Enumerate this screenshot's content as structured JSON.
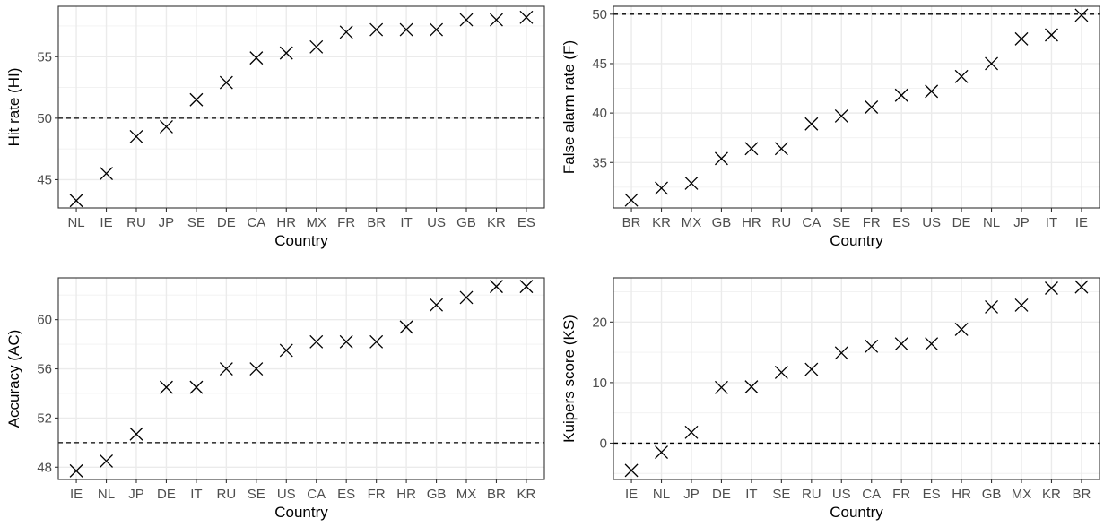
{
  "chart_data": [
    {
      "type": "scatter",
      "marker": "x",
      "title": "",
      "xlabel": "Country",
      "ylabel": "Hit rate (HI)",
      "categories": [
        "NL",
        "IE",
        "RU",
        "JP",
        "SE",
        "DE",
        "CA",
        "HR",
        "MX",
        "FR",
        "BR",
        "IT",
        "US",
        "GB",
        "KR",
        "ES"
      ],
      "values": [
        43.3,
        45.5,
        48.5,
        49.3,
        51.5,
        52.9,
        54.9,
        55.3,
        55.8,
        57.0,
        57.2,
        57.2,
        57.2,
        58.0,
        58.0,
        58.2
      ],
      "ylim": [
        42.7,
        59.1
      ],
      "yticks": [
        45,
        50,
        55
      ],
      "reference_line": 50,
      "grid": true
    },
    {
      "type": "scatter",
      "marker": "x",
      "title": "",
      "xlabel": "Country",
      "ylabel": "False alarm rate (F)",
      "categories": [
        "BR",
        "KR",
        "MX",
        "GB",
        "HR",
        "RU",
        "CA",
        "SE",
        "FR",
        "ES",
        "US",
        "DE",
        "NL",
        "JP",
        "IT",
        "IE"
      ],
      "values": [
        31.2,
        32.4,
        32.9,
        35.4,
        36.4,
        36.4,
        38.9,
        39.7,
        40.6,
        41.8,
        42.2,
        43.7,
        45.0,
        47.5,
        47.9,
        49.9
      ],
      "ylim": [
        30.4,
        50.8
      ],
      "yticks": [
        35,
        40,
        45,
        50
      ],
      "reference_line": 50,
      "grid": true
    },
    {
      "type": "scatter",
      "marker": "x",
      "title": "",
      "xlabel": "Country",
      "ylabel": "Accuracy (AC)",
      "categories": [
        "IE",
        "NL",
        "JP",
        "DE",
        "IT",
        "RU",
        "SE",
        "US",
        "CA",
        "ES",
        "FR",
        "HR",
        "GB",
        "MX",
        "BR",
        "KR"
      ],
      "values": [
        47.7,
        48.5,
        50.7,
        54.5,
        54.5,
        56.0,
        56.0,
        57.5,
        58.2,
        58.2,
        58.2,
        59.4,
        61.2,
        61.8,
        62.7,
        62.7
      ],
      "ylim": [
        47.0,
        63.4
      ],
      "yticks": [
        48,
        52,
        56,
        60
      ],
      "reference_line": 50,
      "grid": true
    },
    {
      "type": "scatter",
      "marker": "x",
      "title": "",
      "xlabel": "Country",
      "ylabel": "Kuipers score (KS)",
      "categories": [
        "IE",
        "NL",
        "JP",
        "DE",
        "IT",
        "SE",
        "RU",
        "US",
        "CA",
        "FR",
        "ES",
        "HR",
        "GB",
        "MX",
        "KR",
        "BR"
      ],
      "values": [
        -4.5,
        -1.5,
        1.8,
        9.2,
        9.3,
        11.7,
        12.2,
        14.9,
        16.0,
        16.4,
        16.4,
        18.8,
        22.5,
        22.8,
        25.6,
        25.8
      ],
      "ylim": [
        -6.0,
        27.3
      ],
      "yticks": [
        0,
        10,
        20
      ],
      "reference_line": 0,
      "grid": true
    }
  ]
}
